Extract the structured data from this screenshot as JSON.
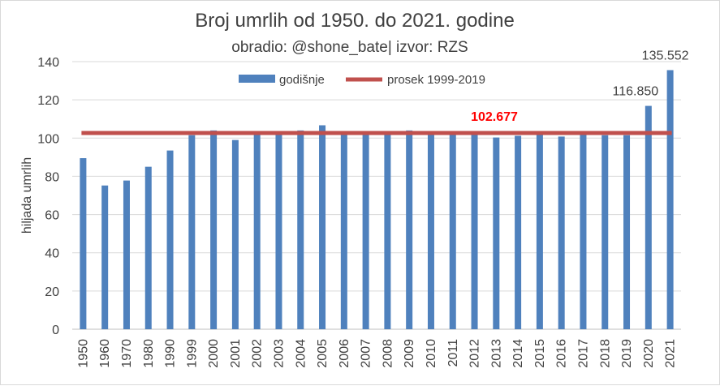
{
  "chart_data": {
    "type": "bar",
    "title": "Broj umrlih od 1950. do 2021. godine",
    "subtitle": "obradio: @shone_bate| izvor: RZS",
    "ylabel": "hiljada umrlih",
    "xlabel": "",
    "ylim": [
      0,
      140
    ],
    "yticks": [
      0,
      20,
      40,
      60,
      80,
      100,
      120,
      140
    ],
    "grid": "horizontal",
    "legend_position": "top",
    "categories": [
      "1950",
      "1960",
      "1970",
      "1980",
      "1990",
      "1999",
      "2000",
      "2001",
      "2002",
      "2003",
      "2004",
      "2005",
      "2006",
      "2007",
      "2008",
      "2009",
      "2010",
      "2011",
      "2012",
      "2013",
      "2014",
      "2015",
      "2016",
      "2017",
      "2018",
      "2019",
      "2020",
      "2021"
    ],
    "series": [
      {
        "name": "godišnje",
        "color": "#4f81bd",
        "values": [
          89.5,
          75.2,
          77.8,
          85.0,
          93.5,
          101.5,
          104.0,
          99.0,
          102.8,
          103.0,
          104.0,
          106.7,
          102.9,
          102.8,
          102.7,
          104.0,
          103.2,
          102.9,
          102.4,
          100.3,
          101.2,
          103.7,
          100.8,
          103.7,
          101.5,
          101.5,
          116.85,
          135.552
        ]
      }
    ],
    "reference_line": {
      "name": "prosek 1999-2019",
      "value": 102.677,
      "label": "102.677",
      "color": "#c0504d",
      "label_color": "#ff0000"
    },
    "data_labels": [
      {
        "category": "2020",
        "text": "116.850"
      },
      {
        "category": "2021",
        "text": "135.552"
      }
    ]
  }
}
